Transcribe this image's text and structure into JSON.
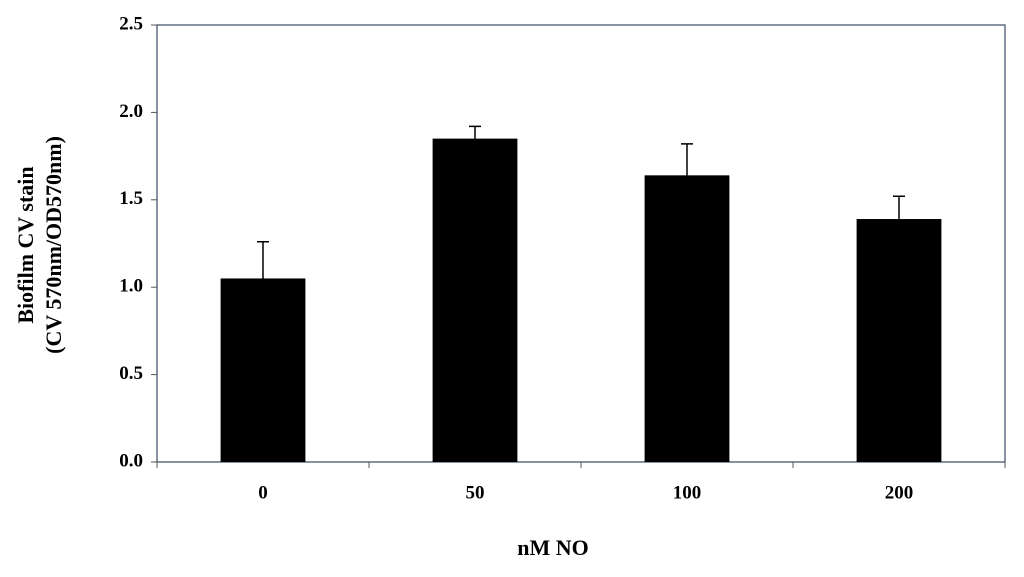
{
  "chart_data": {
    "type": "bar",
    "ylabel": [
      "Biofilm CV stain",
      "(CV 570nm/OD570nm)"
    ],
    "xlabel": "nM NO",
    "categories": [
      "0",
      "50",
      "100",
      "200"
    ],
    "values": [
      1.05,
      1.85,
      1.64,
      1.39
    ],
    "errors": [
      0.21,
      0.07,
      0.18,
      0.13
    ],
    "color": "#000000",
    "ylim": [
      0,
      2.5
    ],
    "yticks": [
      {
        "value": 0,
        "label": "0.0"
      },
      0.5,
      {
        "value": 1,
        "label": "1.0"
      },
      1.5,
      {
        "value": 2,
        "label": "2.0"
      },
      2.5
    ],
    "grid": false
  }
}
